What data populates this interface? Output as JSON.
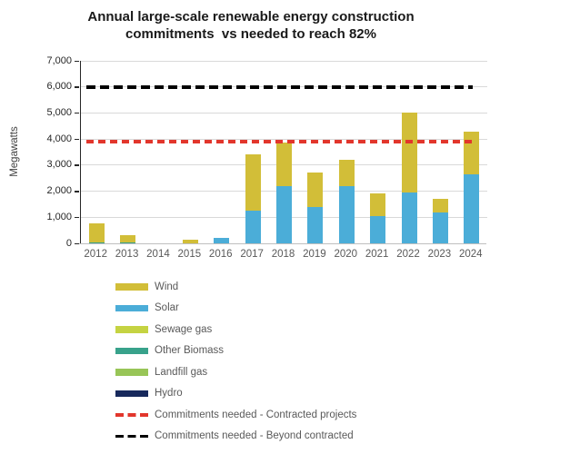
{
  "title": {
    "line1": "Annual large-scale renewable energy construction",
    "line2": "commitments  vs needed to reach 82%"
  },
  "chart_data": {
    "type": "bar",
    "stacked": true,
    "stack_order": "reverse-of-legend",
    "title": "Annual large-scale renewable energy construction commitments vs needed to reach 82%",
    "xlabel": "",
    "ylabel": "Megawatts",
    "ylim": [
      0,
      7000
    ],
    "ytick_step": 1000,
    "ytick_labels": [
      "0",
      "1,000",
      "2,000",
      "3,000",
      "4,000",
      "5,000",
      "6,000",
      "7,000"
    ],
    "grid": true,
    "legend_position": "bottom-left",
    "categories": [
      "2012",
      "2013",
      "2014",
      "2015",
      "2016",
      "2017",
      "2018",
      "2019",
      "2020",
      "2021",
      "2022",
      "2023",
      "2024"
    ],
    "series": [
      {
        "name": "Wind",
        "color": "#d2be38",
        "values": [
          720,
          270,
          0,
          150,
          0,
          2150,
          1650,
          1300,
          1000,
          850,
          3050,
          500,
          1650
        ]
      },
      {
        "name": "Solar",
        "color": "#4badd8",
        "values": [
          0,
          0,
          0,
          0,
          200,
          1250,
          2200,
          1400,
          2200,
          1050,
          1950,
          1200,
          2650
        ]
      },
      {
        "name": "Sewage gas",
        "color": "#c5d342",
        "values": [
          0,
          0,
          0,
          0,
          0,
          0,
          0,
          0,
          0,
          0,
          0,
          0,
          0
        ]
      },
      {
        "name": "Other Biomass",
        "color": "#38a28b",
        "values": [
          30,
          30,
          0,
          0,
          0,
          0,
          0,
          0,
          0,
          0,
          0,
          0,
          0
        ]
      },
      {
        "name": "Landfill gas",
        "color": "#98c557",
        "values": [
          0,
          0,
          0,
          0,
          0,
          0,
          0,
          0,
          0,
          0,
          0,
          0,
          0
        ]
      },
      {
        "name": "Hydro",
        "color": "#17295c",
        "values": [
          0,
          0,
          0,
          0,
          0,
          0,
          0,
          0,
          0,
          0,
          0,
          0,
          0
        ]
      }
    ],
    "reference_lines": [
      {
        "name": "Commitments needed - Contracted projects",
        "value": 3900,
        "color": "#e2362c",
        "style": "dashed"
      },
      {
        "name": "Commitments needed - Beyond contracted",
        "value": 6000,
        "color": "#000000",
        "style": "dashed"
      }
    ]
  },
  "colors": {
    "gridline": "#d9d9d9",
    "axis": "#262626",
    "x_axis_line": "#bfbfbf",
    "tick_label": "#262626",
    "category_label": "#595959",
    "legend_text": "#595959"
  }
}
